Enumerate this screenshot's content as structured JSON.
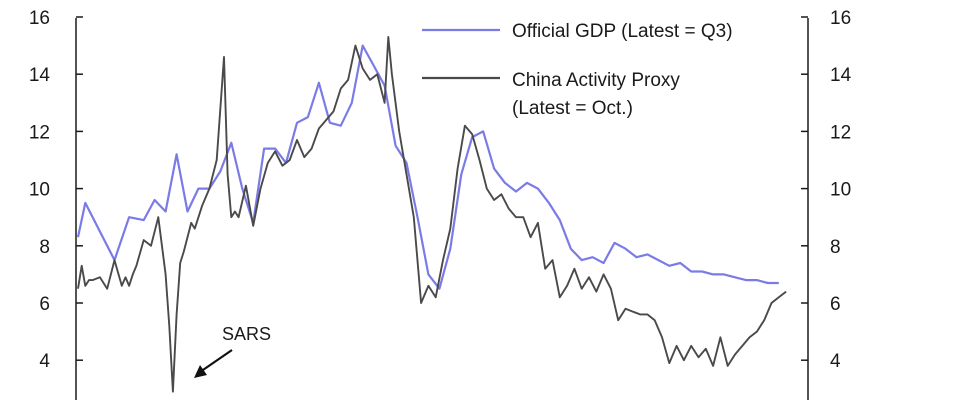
{
  "chart_data": {
    "type": "line",
    "title": "",
    "xlabel": "",
    "ylabel": "",
    "ylim": [
      3,
      16
    ],
    "yticks": [
      4,
      6,
      8,
      10,
      12,
      14,
      16
    ],
    "y_axis_left": true,
    "y_axis_right": true,
    "grid": false,
    "legend_position": "top-right",
    "legend": {
      "gdp_label": "Official GDP (Latest = Q3)",
      "proxy_label_line1": "China Activity Proxy",
      "proxy_label_line2": "(Latest = Oct.)"
    },
    "annotation": {
      "text": "SARS"
    },
    "xlim": [
      0,
      100
    ],
    "series": [
      {
        "name": "Official GDP (Latest = Q3)",
        "color": "#7b7be8",
        "x": [
          0,
          1,
          5,
          7,
          9,
          10.5,
          12,
          13.5,
          15,
          16.5,
          18,
          19.5,
          21,
          22.5,
          24,
          25.5,
          27,
          28.5,
          30,
          31.5,
          33,
          34.5,
          36,
          37.5,
          39,
          40.5,
          42,
          43.5,
          45,
          46.5,
          48,
          49.5,
          51,
          52.5,
          54,
          55.5,
          57,
          58.5,
          60,
          61.5,
          63,
          64.5,
          66,
          67.5,
          69,
          70.5,
          72,
          73.5,
          75,
          76.5,
          78,
          79.5,
          81,
          82.5,
          84,
          85.5,
          87,
          88.5,
          90,
          91.5,
          93,
          94.5,
          96
        ],
        "values": [
          8.3,
          9.5,
          7.5,
          9.0,
          8.9,
          9.6,
          9.2,
          11.2,
          9.2,
          10.0,
          10.0,
          10.6,
          11.6,
          10.0,
          8.8,
          11.4,
          11.4,
          10.9,
          12.3,
          12.5,
          13.7,
          12.3,
          12.2,
          13.0,
          15.0,
          14.3,
          13.6,
          11.5,
          10.9,
          9.0,
          7.0,
          6.5,
          7.9,
          10.5,
          11.8,
          12.0,
          10.7,
          10.2,
          9.9,
          10.2,
          10.0,
          9.5,
          8.9,
          7.9,
          7.5,
          7.6,
          7.4,
          8.1,
          7.9,
          7.6,
          7.7,
          7.5,
          7.3,
          7.4,
          7.1,
          7.1,
          7.0,
          7.0,
          6.9,
          6.8,
          6.8,
          6.7,
          6.7
        ]
      },
      {
        "name": "China Activity Proxy (Latest = Oct.)",
        "color": "#4a4a4a",
        "x": [
          0,
          0.5,
          1,
          1.5,
          2,
          3,
          4,
          5,
          6,
          6.5,
          7,
          7.5,
          8,
          9,
          10,
          11,
          12,
          12.5,
          13,
          13.5,
          14,
          14.5,
          15,
          15.5,
          16,
          17,
          18,
          19,
          20,
          20.5,
          21,
          21.5,
          22,
          23,
          24,
          25,
          26,
          27,
          28,
          29,
          30,
          31,
          32,
          33,
          34,
          35,
          36,
          37,
          38,
          39,
          40,
          41,
          42,
          42.5,
          43,
          44,
          45,
          46,
          47,
          48,
          49,
          50,
          51,
          52,
          53,
          54,
          55,
          56,
          57,
          58,
          59,
          60,
          61,
          62,
          63,
          64,
          65,
          66,
          67,
          68,
          69,
          70,
          71,
          72,
          73,
          74,
          75,
          76,
          77,
          78,
          79,
          80,
          81,
          82,
          83,
          84,
          85,
          86,
          87,
          88,
          89,
          90,
          91,
          92,
          93,
          94,
          95,
          96,
          97
        ],
        "values": [
          6.5,
          7.3,
          6.6,
          6.8,
          6.8,
          6.9,
          6.5,
          7.5,
          6.6,
          6.9,
          6.6,
          7.0,
          7.3,
          8.2,
          8.0,
          9.0,
          7.0,
          5.2,
          2.9,
          5.6,
          7.4,
          7.8,
          8.3,
          8.8,
          8.6,
          9.4,
          10.0,
          11.0,
          14.6,
          10.5,
          9.0,
          9.2,
          9.0,
          10.1,
          8.7,
          10.0,
          10.9,
          11.3,
          10.8,
          11.0,
          11.7,
          11.1,
          11.4,
          12.1,
          12.4,
          12.7,
          13.5,
          13.8,
          15.0,
          14.2,
          13.8,
          14.0,
          13.0,
          15.3,
          14.0,
          12.0,
          10.5,
          9.0,
          6.0,
          6.6,
          6.2,
          7.5,
          8.6,
          10.7,
          12.2,
          11.9,
          11.0,
          10.0,
          9.6,
          9.8,
          9.3,
          9.0,
          9.0,
          8.3,
          8.8,
          7.2,
          7.5,
          6.2,
          6.6,
          7.2,
          6.5,
          6.9,
          6.4,
          7.0,
          6.5,
          5.4,
          5.8,
          5.7,
          5.6,
          5.6,
          5.4,
          4.8,
          3.9,
          4.5,
          4.0,
          4.5,
          4.1,
          4.4,
          3.8,
          4.8,
          3.8,
          4.2,
          4.5,
          4.8,
          5.0,
          5.4,
          6.0,
          6.2,
          6.4
        ]
      }
    ]
  }
}
